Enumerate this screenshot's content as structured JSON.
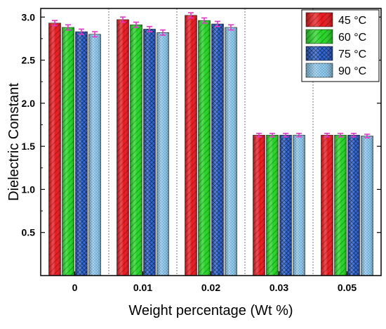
{
  "chart_data": {
    "type": "bar",
    "categories": [
      "0",
      "0.01",
      "0.02",
      "0.03",
      "0.05"
    ],
    "series": [
      {
        "name": "45 °C",
        "color": "#e8151b",
        "values": [
          2.93,
          2.97,
          3.02,
          1.63,
          1.63
        ],
        "errors": [
          0.03,
          0.03,
          0.03,
          0.02,
          0.02
        ]
      },
      {
        "name": "60 °C",
        "color": "#21d421",
        "values": [
          2.88,
          2.91,
          2.96,
          1.63,
          1.63
        ],
        "errors": [
          0.03,
          0.03,
          0.03,
          0.02,
          0.02
        ]
      },
      {
        "name": "75 °C",
        "color": "#2a62d6",
        "values": [
          2.83,
          2.86,
          2.92,
          1.63,
          1.63
        ],
        "errors": [
          0.03,
          0.03,
          0.03,
          0.02,
          0.02
        ]
      },
      {
        "name": "90 °C",
        "color": "#8ecbf2",
        "values": [
          2.8,
          2.82,
          2.88,
          1.63,
          1.62
        ],
        "errors": [
          0.03,
          0.03,
          0.03,
          0.02,
          0.02
        ]
      }
    ],
    "error_bar_color": "#e236c9",
    "xlabel": "Weight percentage (Wt %)",
    "ylabel": "Dielectric Constant",
    "ylim": [
      0,
      3.1
    ],
    "yticks": [
      0.5,
      1.0,
      1.5,
      2.0,
      2.5,
      3.0
    ],
    "ytick_labels": [
      "0.5",
      "1.0",
      "1.5",
      "2.0",
      "2.5",
      "3.0"
    ],
    "category_separators": "dashed",
    "grid": false,
    "legend_position": "top-right"
  }
}
